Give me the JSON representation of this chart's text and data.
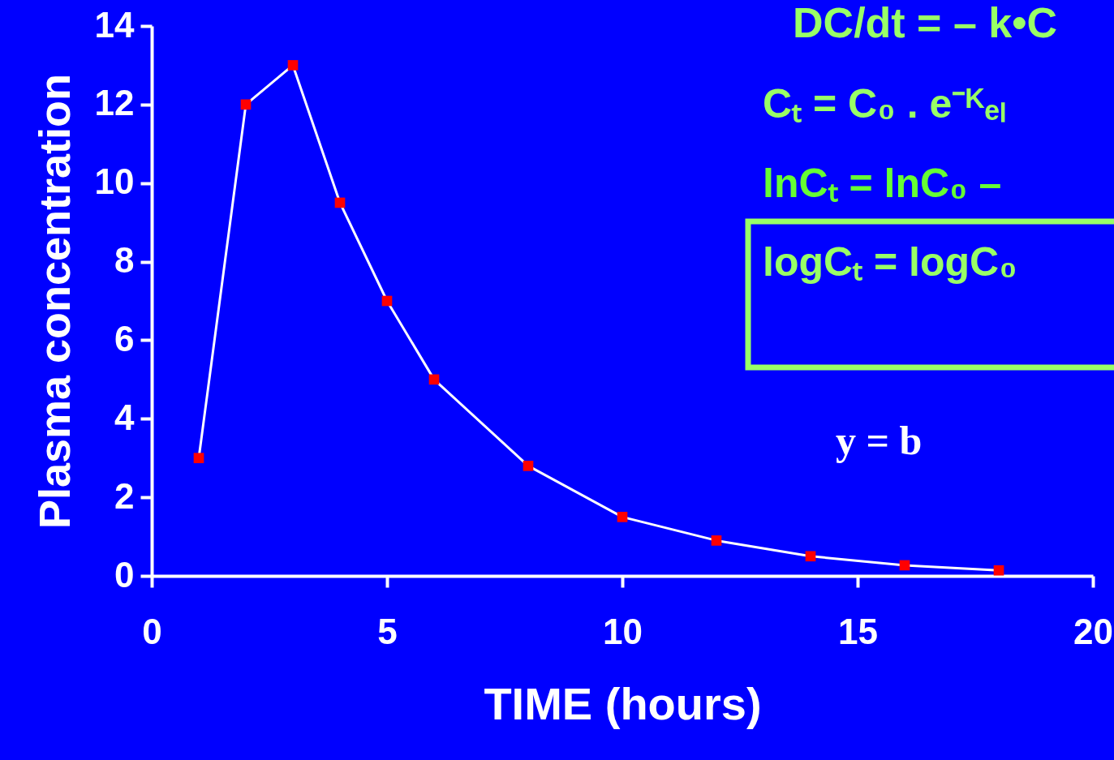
{
  "chart_data": {
    "type": "line",
    "xlabel": "TIME (hours)",
    "ylabel": "Plasma concentration",
    "x": [
      1,
      2,
      3,
      4,
      5,
      6,
      8,
      10,
      12,
      14,
      16,
      18
    ],
    "series": [
      {
        "color": "#ff0000",
        "values": [
          3.0,
          12.0,
          13.0,
          9.5,
          7.0,
          5.0,
          2.8,
          1.5,
          0.9,
          0.5,
          0.27,
          0.14
        ]
      }
    ],
    "xlim": [
      0,
      20
    ],
    "xticks": [
      {
        "value": 0,
        "label": "0"
      },
      {
        "value": 5,
        "label": "5"
      },
      {
        "value": 10,
        "label": "10"
      },
      {
        "value": 15,
        "label": "15"
      },
      {
        "value": 20,
        "label": "20"
      }
    ],
    "ylim": [
      0,
      14
    ],
    "yticks": [
      0,
      2,
      4,
      6,
      8,
      10,
      12,
      14
    ],
    "grid": false,
    "marker": "square",
    "line_style": "solid",
    "annotations": [
      "DC/dt = – k•C",
      "Cₜ = C₀ . e⁻ᴷₑₗ",
      "lnCₜ = lnC₀ –",
      "logCₜ = logC₀",
      "y = b"
    ]
  }
}
